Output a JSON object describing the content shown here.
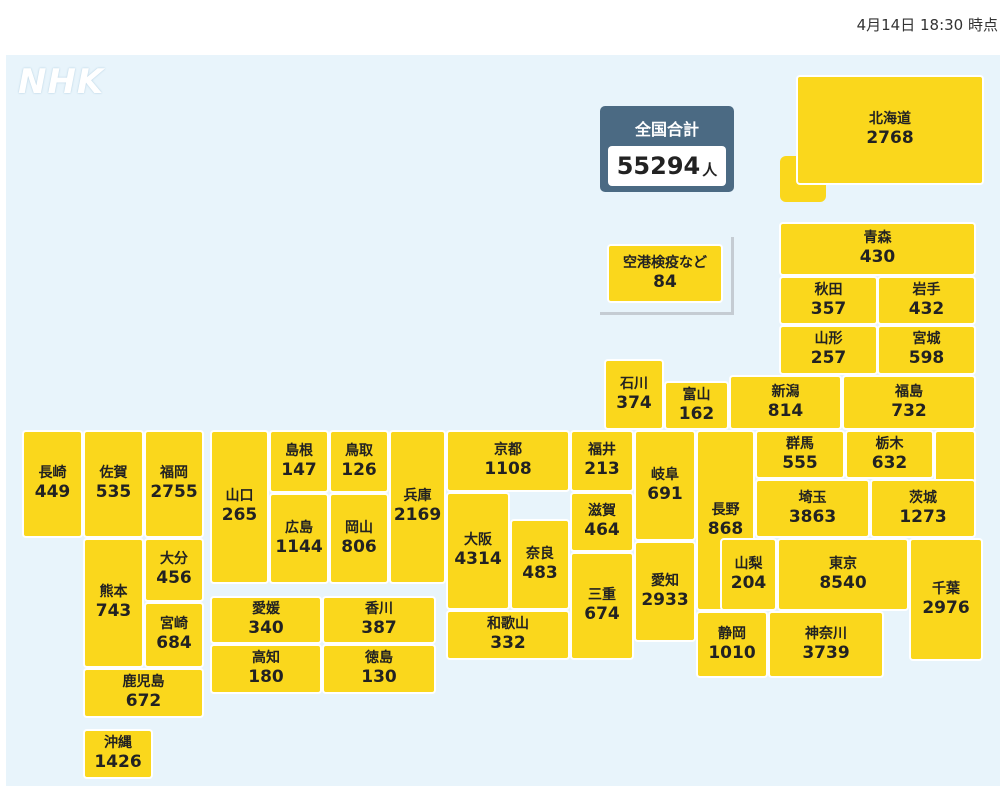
{
  "timestamp": "4月14日 18:30 時点",
  "logo": "NHK",
  "total": {
    "label": "全国合計",
    "value": "55294",
    "unit": "人"
  },
  "prefectures": {
    "hokkaido": {
      "name": "北海道",
      "value": "2768"
    },
    "aomori": {
      "name": "青森",
      "value": "430"
    },
    "akita": {
      "name": "秋田",
      "value": "357"
    },
    "iwate": {
      "name": "岩手",
      "value": "432"
    },
    "yamagata": {
      "name": "山形",
      "value": "257"
    },
    "miyagi": {
      "name": "宮城",
      "value": "598"
    },
    "ishikawa": {
      "name": "石川",
      "value": "374"
    },
    "toyama": {
      "name": "富山",
      "value": "162"
    },
    "niigata": {
      "name": "新潟",
      "value": "814"
    },
    "fukushima": {
      "name": "福島",
      "value": "732"
    },
    "nagasaki": {
      "name": "長崎",
      "value": "449"
    },
    "saga": {
      "name": "佐賀",
      "value": "535"
    },
    "fukuoka": {
      "name": "福岡",
      "value": "2755"
    },
    "yamaguchi": {
      "name": "山口",
      "value": "265"
    },
    "shimane": {
      "name": "島根",
      "value": "147"
    },
    "tottori": {
      "name": "鳥取",
      "value": "126"
    },
    "hyogo": {
      "name": "兵庫",
      "value": "2169"
    },
    "kyoto": {
      "name": "京都",
      "value": "1108"
    },
    "fukui": {
      "name": "福井",
      "value": "213"
    },
    "gifu": {
      "name": "岐阜",
      "value": "691"
    },
    "nagano": {
      "name": "長野",
      "value": "868"
    },
    "gunma": {
      "name": "群馬",
      "value": "555"
    },
    "tochigi": {
      "name": "栃木",
      "value": "632"
    },
    "ibaraki": {
      "name": "茨城",
      "value": "1273"
    },
    "saitama": {
      "name": "埼玉",
      "value": "3863"
    },
    "hiroshima": {
      "name": "広島",
      "value": "1144"
    },
    "okayama": {
      "name": "岡山",
      "value": "806"
    },
    "osaka": {
      "name": "大阪",
      "value": "4314"
    },
    "nara": {
      "name": "奈良",
      "value": "483"
    },
    "shiga": {
      "name": "滋賀",
      "value": "464"
    },
    "mie": {
      "name": "三重",
      "value": "674"
    },
    "aichi": {
      "name": "愛知",
      "value": "2933"
    },
    "yamanashi": {
      "name": "山梨",
      "value": "204"
    },
    "tokyo": {
      "name": "東京",
      "value": "8540"
    },
    "chiba": {
      "name": "千葉",
      "value": "2976"
    },
    "oita": {
      "name": "大分",
      "value": "456"
    },
    "kumamoto": {
      "name": "熊本",
      "value": "743"
    },
    "miyazaki": {
      "name": "宮崎",
      "value": "684"
    },
    "ehime": {
      "name": "愛媛",
      "value": "340"
    },
    "kagawa": {
      "name": "香川",
      "value": "387"
    },
    "kochi": {
      "name": "高知",
      "value": "180"
    },
    "tokushima": {
      "name": "徳島",
      "value": "130"
    },
    "wakayama": {
      "name": "和歌山",
      "value": "332"
    },
    "shizuoka": {
      "name": "静岡",
      "value": "1010"
    },
    "kanagawa": {
      "name": "神奈川",
      "value": "3739"
    },
    "kagoshima": {
      "name": "鹿児島",
      "value": "672"
    },
    "okinawa": {
      "name": "沖縄",
      "value": "1426"
    },
    "airport": {
      "name": "空港検疫など",
      "value": "84"
    }
  },
  "colors": {
    "tile": "#fad71c",
    "map_bg": "#e8f4fb",
    "total_bg": "#4b6a83"
  }
}
